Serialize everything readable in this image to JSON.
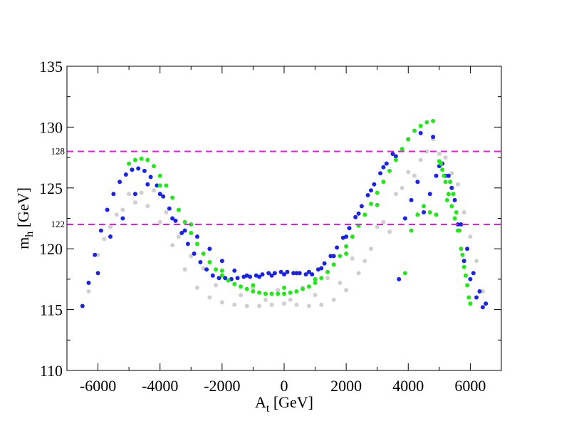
{
  "chart_data": {
    "type": "scatter",
    "title": "",
    "xlabel": "A",
    "xlabel_sub": "t",
    "xlabel_unit": " [GeV]",
    "ylabel": "m",
    "ylabel_sub": "h",
    "ylabel_unit": " [GeV]",
    "xlim": [
      -7000,
      7000
    ],
    "ylim": [
      110,
      135
    ],
    "x_ticks": [
      -6000,
      -4000,
      -2000,
      0,
      2000,
      4000,
      6000
    ],
    "x_tick_labels": [
      "-6000",
      "-4000",
      "-2000",
      "0",
      "2000",
      "4000",
      "6000"
    ],
    "y_ticks": [
      110,
      115,
      120,
      125,
      130,
      135
    ],
    "y_tick_labels": [
      "110",
      "115",
      "120",
      "125",
      "130",
      "135"
    ],
    "grid": false,
    "legend": "none",
    "reference_lines": [
      {
        "y": 128,
        "label": "128",
        "color": "#e020e0",
        "style": "dashed"
      },
      {
        "y": 122,
        "label": "122",
        "color": "#e020e0",
        "style": "dashed"
      }
    ],
    "series": [
      {
        "color": "#cfcfcf",
        "x": [
          -6300,
          -6000,
          -5600,
          -5200,
          -4800,
          -4400,
          -4000,
          -3600,
          -3200,
          -2800,
          -2400,
          -2000,
          -1600,
          -1200,
          -800,
          -400,
          0,
          400,
          800,
          1200,
          1600,
          2000,
          2400,
          2800,
          3200,
          3600,
          4000,
          4400,
          4800,
          5200,
          5600,
          6000,
          6400,
          -5800,
          -5000,
          -4200,
          -3400,
          -2600,
          -1800,
          -1000,
          -200,
          600,
          1400,
          2200,
          3000,
          3800,
          4600,
          5400,
          6200,
          -5400,
          -4600,
          -3800,
          -3000,
          -2200,
          -1400,
          -600,
          200,
          1000,
          1800,
          2600,
          3400,
          4200,
          5000,
          5800
        ],
        "y": [
          116.5,
          119.5,
          121.8,
          123.2,
          123.8,
          123.5,
          122.2,
          120.3,
          118.3,
          116.8,
          116.0,
          115.6,
          115.4,
          115.3,
          115.3,
          115.4,
          115.5,
          115.4,
          115.3,
          115.4,
          115.8,
          116.6,
          118.0,
          120.0,
          122.2,
          124.5,
          126.3,
          127.3,
          129.0,
          127.5,
          125.3,
          121.0,
          116.5,
          120.8,
          124.5,
          124.8,
          121.0,
          118.4,
          117.4,
          116.8,
          116.6,
          116.8,
          117.6,
          119.2,
          121.8,
          125.0,
          128.0,
          126.2,
          119.0,
          122.8,
          124.6,
          123.0,
          119.4,
          117.0,
          116.2,
          115.8,
          115.8,
          116.2,
          117.2,
          119.0,
          121.4,
          126.0,
          127.8,
          123.0
        ]
      },
      {
        "color": "#1a24e6",
        "x": [
          -6500,
          -6300,
          -6100,
          -5900,
          -5700,
          -5500,
          -5300,
          -5100,
          -4900,
          -4700,
          -4500,
          -4300,
          -4100,
          -3900,
          -3700,
          -3500,
          -3300,
          -3100,
          -2900,
          -2700,
          -2500,
          -2300,
          -2100,
          -1900,
          -1700,
          -1500,
          -1300,
          -1100,
          -900,
          -700,
          -500,
          -300,
          -100,
          100,
          300,
          500,
          700,
          900,
          1100,
          1300,
          1500,
          1700,
          1900,
          2100,
          2300,
          2500,
          2700,
          2900,
          3100,
          3300,
          3500,
          3700,
          3900,
          4100,
          4300,
          4500,
          4700,
          4900,
          5100,
          5300,
          5500,
          5700,
          5900,
          6100,
          6300,
          6500,
          -6000,
          -5600,
          -5200,
          -4800,
          -4400,
          -4000,
          -3600,
          -3200,
          -2800,
          -2400,
          -2000,
          -1600,
          -1200,
          -800,
          -400,
          0,
          400,
          800,
          1200,
          1600,
          2000,
          2400,
          2800,
          3200,
          3600,
          4000,
          4400,
          4800,
          5000,
          5200,
          5400,
          5600,
          5800,
          6000,
          6200,
          6400
        ],
        "y": [
          115.3,
          117.2,
          119.5,
          121.5,
          123.2,
          124.5,
          125.5,
          126.1,
          126.5,
          126.6,
          126.4,
          125.9,
          125.2,
          124.3,
          123.3,
          122.3,
          121.3,
          120.4,
          119.6,
          118.9,
          118.3,
          117.8,
          117.6,
          117.6,
          117.5,
          117.6,
          117.7,
          117.7,
          117.8,
          117.9,
          118.0,
          118.0,
          118.1,
          118.1,
          118.0,
          118.0,
          117.9,
          117.9,
          118.3,
          118.8,
          119.4,
          120.1,
          120.9,
          121.7,
          122.6,
          123.5,
          124.4,
          125.3,
          126.2,
          127.0,
          127.8,
          117.5,
          122.5,
          124.0,
          125.5,
          123.0,
          124.5,
          126.0,
          127.0,
          126.0,
          124.0,
          122.0,
          120.0,
          118.0,
          116.5,
          115.5,
          118.0,
          121.0,
          122.5,
          124.5,
          125.3,
          124.5,
          122.5,
          121.5,
          121.0,
          120.0,
          119.0,
          118.2,
          117.8,
          117.7,
          117.8,
          117.9,
          118.0,
          118.1,
          118.4,
          119.4,
          121.0,
          122.9,
          124.8,
          126.7,
          127.6,
          129.0,
          129.5,
          129.2,
          126.8,
          126.0,
          125.0,
          122.0,
          119.0,
          117.5,
          116.0,
          115.2
        ]
      },
      {
        "color": "#22e81a",
        "x": [
          -5000,
          -4800,
          -4600,
          -4400,
          -4200,
          -4000,
          -3800,
          -3600,
          -3400,
          -3200,
          -3000,
          -2800,
          -2600,
          -2400,
          -2200,
          -2000,
          -1800,
          -1600,
          -1400,
          -1200,
          -1000,
          -800,
          -600,
          -400,
          -200,
          0,
          200,
          400,
          600,
          800,
          1000,
          1200,
          1400,
          1600,
          1800,
          2000,
          2200,
          2400,
          2600,
          2800,
          3000,
          3200,
          3400,
          3600,
          3800,
          4000,
          4200,
          4400,
          4600,
          4800,
          5000,
          5100,
          5200,
          5300,
          5400,
          5500,
          5600,
          5700,
          5800,
          5900,
          6000,
          3900,
          4100,
          4300,
          4500,
          4700,
          4900,
          5050,
          5150,
          5250,
          5350,
          5450,
          5550,
          5650,
          5750,
          5850,
          5950,
          -4000,
          -3000,
          -2000,
          -1000,
          0,
          1000,
          2000,
          3000
        ],
        "y": [
          127.0,
          127.3,
          127.4,
          127.3,
          126.8,
          126.0,
          125.2,
          124.2,
          123.2,
          122.2,
          121.3,
          120.4,
          119.6,
          118.9,
          118.3,
          117.8,
          117.4,
          117.1,
          116.9,
          116.7,
          116.5,
          116.4,
          116.3,
          116.3,
          116.3,
          116.3,
          116.4,
          116.5,
          116.7,
          116.9,
          117.2,
          117.6,
          118.1,
          118.7,
          119.4,
          120.2,
          121.0,
          121.9,
          122.8,
          123.7,
          124.6,
          125.5,
          126.4,
          127.3,
          128.2,
          129.0,
          129.7,
          130.1,
          130.4,
          130.5,
          127.2,
          126.5,
          125.5,
          124.5,
          123.5,
          122.5,
          121.5,
          120.0,
          118.5,
          117.0,
          115.5,
          118.0,
          121.5,
          122.8,
          123.5,
          123.0,
          122.8,
          127.0,
          126.0,
          124.0,
          125.5,
          124.5,
          123.0,
          121.5,
          119.5,
          117.8,
          116.0,
          125.2,
          122.0,
          118.2,
          117.0,
          116.8,
          117.5,
          119.6,
          123.6
        ]
      }
    ]
  }
}
